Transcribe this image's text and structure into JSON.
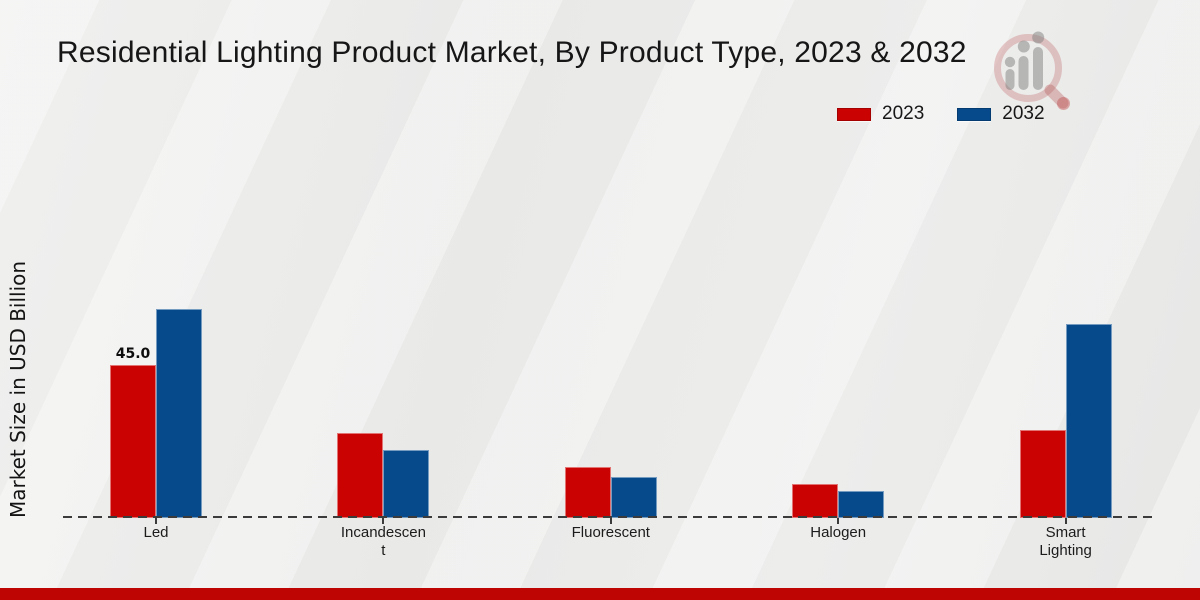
{
  "page": {
    "title": "Residential Lighting Product Market, By Product Type, 2023 & 2032",
    "background_color": "#ebebea",
    "footer_bar_color": "#bf0404"
  },
  "legend": {
    "position": "top-right",
    "items": [
      {
        "label": "2023",
        "color": "#cb0202"
      },
      {
        "label": "2032",
        "color": "#064a8c"
      }
    ]
  },
  "y_axis": {
    "label": "Market Size in USD Billion"
  },
  "watermark": {
    "name": "market-research-future-logo"
  },
  "chart_data": {
    "type": "bar",
    "title": "Residential Lighting Product Market, By Product Type, 2023 & 2032",
    "xlabel": "",
    "ylabel": "Market Size in USD Billion",
    "unit": "USD Billion",
    "categories": [
      "Led",
      "Incandescent",
      "Fluorescent",
      "Halogen",
      "Smart Lighting"
    ],
    "category_display_lines": [
      [
        "Led"
      ],
      [
        "Incandescen",
        "t"
      ],
      [
        "Fluorescent"
      ],
      [
        "Halogen"
      ],
      [
        "Smart",
        "Lighting"
      ]
    ],
    "series": [
      {
        "name": "2023",
        "color": "#cb0202",
        "values": [
          45.0,
          25.0,
          15.0,
          10.0,
          26.0
        ]
      },
      {
        "name": "2032",
        "color": "#064a8c",
        "values": [
          61.5,
          20.0,
          12.0,
          8.0,
          57.0
        ]
      }
    ],
    "data_labels": [
      {
        "series": "2023",
        "category": "Led",
        "text": "45.0"
      }
    ],
    "ylim": [
      0,
      70
    ],
    "grid": false,
    "baseline_style": "dashed",
    "legend_position": "top-right"
  }
}
